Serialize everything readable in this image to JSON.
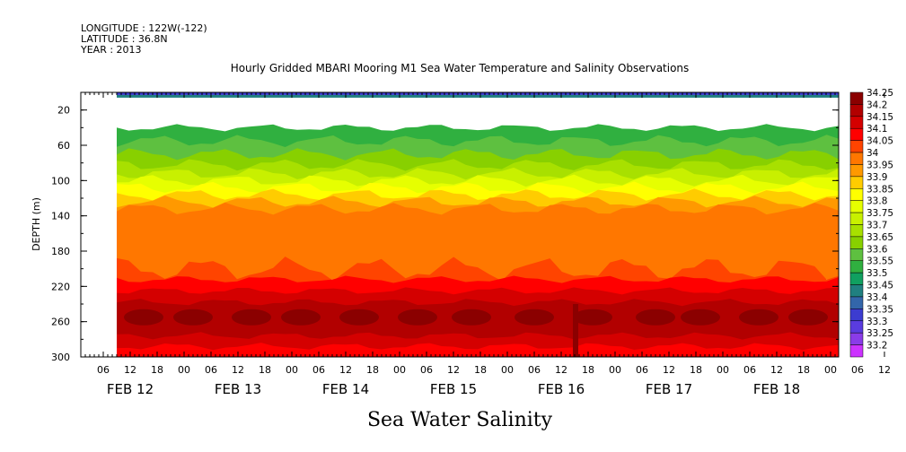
{
  "header": {
    "longitude": "LONGITUDE : 122W(-122)",
    "latitude": "LATITUDE : 36.8N",
    "year": "YEAR : 2013",
    "title": "Hourly Gridded MBARI Mooring M1 Sea Water Temperature and Salinity Observations"
  },
  "chart_data": {
    "type": "heatmap",
    "title": "Hourly Gridded MBARI Mooring M1 Sea Water Temperature and Salinity Observations",
    "xlabel": "",
    "ylabel": "DEPTH (m)",
    "bottom_label": "Sea Water Salinity",
    "xlim": [
      "2013-02-11T12:00",
      "2013-02-19T00:00"
    ],
    "ylim": [
      300,
      0
    ],
    "y_ticks": [
      20,
      60,
      100,
      140,
      180,
      220,
      260,
      300
    ],
    "hour_ticks": [
      "06",
      "12",
      "18",
      "00",
      "06",
      "12",
      "18",
      "00",
      "06",
      "12",
      "18",
      "00",
      "06",
      "12",
      "18",
      "00",
      "06",
      "12",
      "18",
      "00",
      "06",
      "12",
      "18",
      "00",
      "06",
      "12",
      "18",
      "00",
      "06",
      "12",
      "18",
      "00"
    ],
    "date_labels": [
      "FEB 12",
      "FEB 13",
      "FEB 14",
      "FEB 15",
      "FEB 16",
      "FEB 17",
      "FEB 18"
    ],
    "colorbar": {
      "levels": [
        "34.25",
        "34.2",
        "34.15",
        "34.1",
        "34.05",
        "34",
        "33.95",
        "33.9",
        "33.85",
        "33.8",
        "33.75",
        "33.7",
        "33.65",
        "33.6",
        "33.55",
        "33.5",
        "33.45",
        "33.4",
        "33.35",
        "33.3",
        "33.25",
        "33.2"
      ],
      "colors": [
        "#8b0000",
        "#b20000",
        "#d40000",
        "#ff0000",
        "#ff4400",
        "#ff7700",
        "#ff9900",
        "#ffcc00",
        "#ffff00",
        "#e6ff00",
        "#c8f000",
        "#a8e000",
        "#88d000",
        "#5ec040",
        "#30b040",
        "#10a060",
        "#208080",
        "#3366aa",
        "#3c3cd0",
        "#5a3ce0",
        "#8a3ce8",
        "#cc33ff"
      ]
    },
    "depth_profile": [
      {
        "depth": 10,
        "salinity": 33.45
      },
      {
        "depth": 40,
        "salinity": 33.55
      },
      {
        "depth": 60,
        "salinity": 33.6
      },
      {
        "depth": 80,
        "salinity": 33.7
      },
      {
        "depth": 100,
        "salinity": 33.8
      },
      {
        "depth": 120,
        "salinity": 33.9
      },
      {
        "depth": 140,
        "salinity": 34.0
      },
      {
        "depth": 180,
        "salinity": 34.05
      },
      {
        "depth": 220,
        "salinity": 34.1
      },
      {
        "depth": 250,
        "salinity": 34.2
      },
      {
        "depth": 260,
        "salinity": 34.25
      },
      {
        "depth": 280,
        "salinity": 34.15
      },
      {
        "depth": 300,
        "salinity": 34.1
      }
    ]
  }
}
